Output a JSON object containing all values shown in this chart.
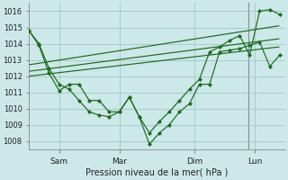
{
  "bg_color": "#cce8e8",
  "grid_color": "#a0c8c8",
  "line_color": "#1a6b1a",
  "xlabel": "Pression niveau de la mer( hPa )",
  "ylim": [
    1007.5,
    1016.5
  ],
  "yticks": [
    1008,
    1009,
    1010,
    1011,
    1012,
    1013,
    1014,
    1015,
    1016
  ],
  "xlim": [
    0,
    8.5
  ],
  "xtick_labels": [
    "Sam",
    "Mar",
    "Dim",
    "Lun"
  ],
  "xtick_positions": [
    1,
    3,
    5.5,
    7.5
  ],
  "series1": {
    "x": [
      0,
      0.33,
      0.66,
      1.0,
      1.33,
      1.66,
      2.0,
      2.33,
      2.66,
      3.0,
      3.33,
      3.66,
      4.0,
      4.33,
      4.66,
      5.0,
      5.33,
      5.66,
      6.0,
      6.33,
      6.66,
      7.0,
      7.33,
      7.66,
      8.0,
      8.33
    ],
    "y": [
      1014.8,
      1013.9,
      1012.2,
      1011.1,
      1011.5,
      1011.5,
      1010.5,
      1010.5,
      1009.8,
      1009.8,
      1010.7,
      1009.5,
      1007.8,
      1008.5,
      1009.0,
      1009.8,
      1010.3,
      1011.5,
      1011.5,
      1013.5,
      1013.6,
      1013.7,
      1013.9,
      1014.1,
      1012.6,
      1013.3
    ]
  },
  "series_trend1": {
    "x": [
      0,
      8.3
    ],
    "y": [
      1012.0,
      1013.8
    ]
  },
  "series_trend2": {
    "x": [
      0,
      8.3
    ],
    "y": [
      1012.3,
      1014.3
    ]
  },
  "series_trend3": {
    "x": [
      0,
      8.3
    ],
    "y": [
      1012.7,
      1015.1
    ]
  },
  "series2": {
    "x": [
      0,
      0.33,
      0.66,
      1.0,
      1.33,
      1.66,
      2.0,
      2.33,
      2.66,
      3.0,
      3.33,
      3.66,
      4.0,
      4.33,
      4.66,
      5.0,
      5.33,
      5.66,
      6.0,
      6.33,
      6.66,
      7.0,
      7.33,
      7.66,
      8.0,
      8.33
    ],
    "y": [
      1014.8,
      1014.0,
      1012.5,
      1011.5,
      1011.2,
      1010.5,
      1009.8,
      1009.6,
      1009.5,
      1009.8,
      1010.7,
      1009.5,
      1008.5,
      1009.2,
      1009.8,
      1010.5,
      1011.2,
      1011.8,
      1013.5,
      1013.8,
      1014.2,
      1014.5,
      1013.3,
      1016.0,
      1016.1,
      1015.8
    ]
  },
  "vline_x": 7.3,
  "vline_color": "#777777"
}
